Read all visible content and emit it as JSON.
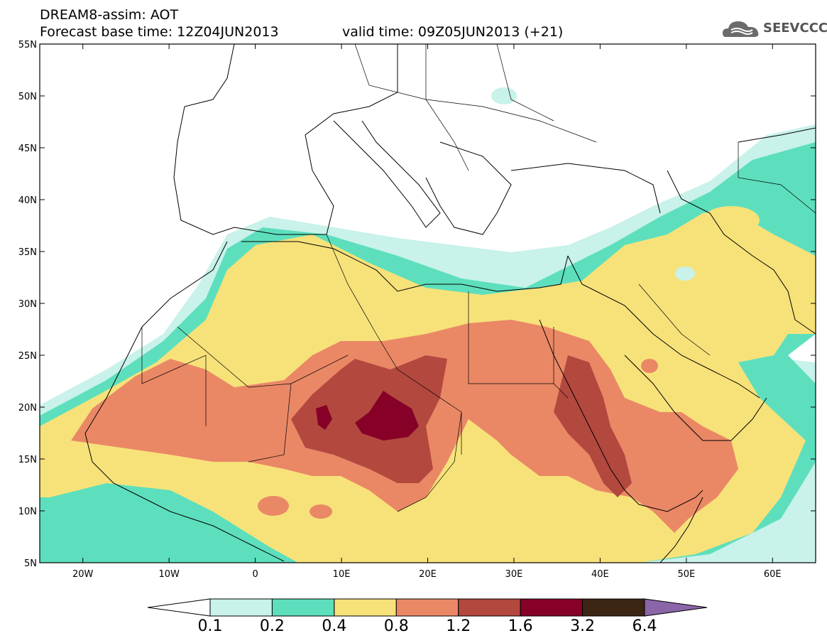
{
  "header": {
    "title": "DREAM8-assim: AOT",
    "base_time": "Forecast base time: 12Z04JUN2013",
    "valid_time": "valid time: 09Z05JUN2013 (+21)"
  },
  "logo": {
    "text": "SEEVCCC",
    "icon": "cloud-logo-icon"
  },
  "map": {
    "lon_range": [
      -25,
      65
    ],
    "lat_range": [
      5,
      55
    ],
    "lon_ticks": [
      "20W",
      "10W",
      "0",
      "10E",
      "20E",
      "30E",
      "40E",
      "50E",
      "60E"
    ],
    "lat_ticks": [
      "5N",
      "10N",
      "15N",
      "20N",
      "25N",
      "30N",
      "35N",
      "40N",
      "45N",
      "50N",
      "55N"
    ]
  },
  "colorbar": {
    "labels": [
      "0.1",
      "0.2",
      "0.4",
      "0.8",
      "1.2",
      "1.6",
      "3.2",
      "6.4"
    ],
    "colors": [
      "#ffffff",
      "#c8f2ea",
      "#5ddfbd",
      "#f7e27a",
      "#ea8866",
      "#b3483f",
      "#860027",
      "#3d2514",
      "#8a66a8"
    ]
  }
}
